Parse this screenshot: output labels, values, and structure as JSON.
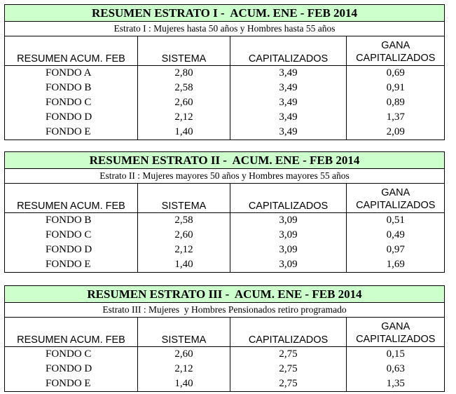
{
  "sections": [
    {
      "title": "RESUMEN ESTRATO I -  ACUM. ENE - FEB 2014",
      "subtitle": "Estrato I : Mujeres hasta 50 años y Hombres hasta 55 años",
      "headers": [
        "RESUMEN ACUM. FEB",
        "SISTEMA",
        "CAPITALIZADOS",
        "GANA",
        "CAPITALIZADOS"
      ],
      "rows": [
        [
          "FONDO A",
          "2,80",
          "3,49",
          "0,69"
        ],
        [
          "FONDO B",
          "2,58",
          "3,49",
          "0,91"
        ],
        [
          "FONDO C",
          "2,60",
          "3,49",
          "0,89"
        ],
        [
          "FONDO D",
          "2,12",
          "3,49",
          "1,37"
        ],
        [
          "FONDO E",
          "1,40",
          "3,49",
          "2,09"
        ]
      ]
    },
    {
      "title": "RESUMEN ESTRATO II -  ACUM. ENE - FEB 2014",
      "subtitle": "Estrato II : Mujeres mayores 50 años y Hombres mayores 55 años",
      "headers": [
        "RESUMEN ACUM. FEB",
        "SISTEMA",
        "CAPITALIZADOS",
        "GANA",
        "CAPITALIZADOS"
      ],
      "rows": [
        [
          "FONDO B",
          "2,58",
          "3,09",
          "0,51"
        ],
        [
          "FONDO C",
          "2,60",
          "3,09",
          "0,49"
        ],
        [
          "FONDO D",
          "2,12",
          "3,09",
          "0,97"
        ],
        [
          "FONDO E",
          "1,40",
          "3,09",
          "1,69"
        ]
      ]
    },
    {
      "title": "RESUMEN ESTRATO III -  ACUM. ENE - FEB 2014",
      "subtitle": "Estrato III : Mujeres  y Hombres Pensionados retiro programado",
      "headers": [
        "RESUMEN ACUM. FEB",
        "SISTEMA",
        "CAPITALIZADOS",
        "GANA",
        "CAPITALIZADOS"
      ],
      "rows": [
        [
          "FONDO C",
          "2,60",
          "2,75",
          "0,15"
        ],
        [
          "FONDO D",
          "2,12",
          "2,75",
          "0,63"
        ],
        [
          "FONDO E",
          "1,40",
          "2,75",
          "1,35"
        ]
      ]
    }
  ],
  "colors": {
    "title_background": "#ccffcc",
    "border": "#000000"
  }
}
